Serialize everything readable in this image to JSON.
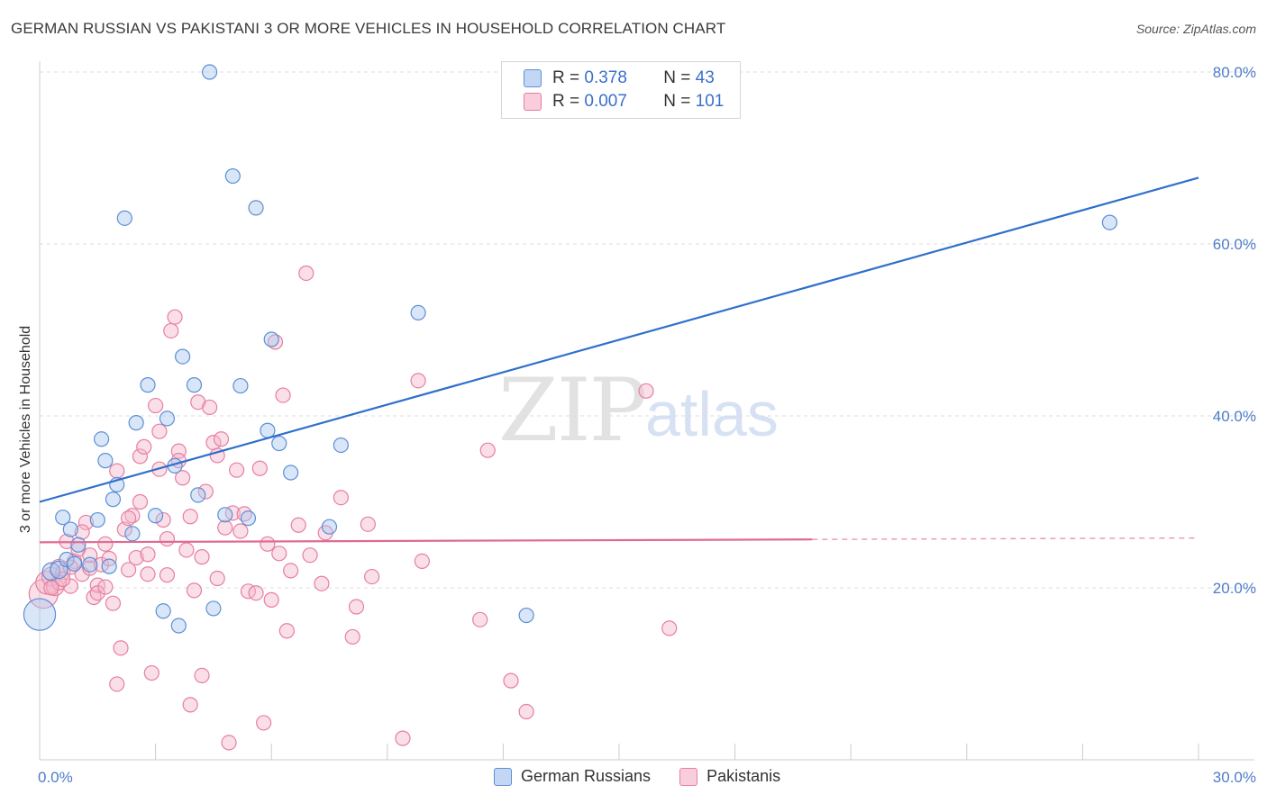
{
  "title": "GERMAN RUSSIAN VS PAKISTANI 3 OR MORE VEHICLES IN HOUSEHOLD CORRELATION CHART",
  "source": "Source: ZipAtlas.com",
  "watermark": {
    "zip": "ZIP",
    "atlas": "atlas"
  },
  "legend": {
    "rows": [
      {
        "r_label": "R =",
        "r_value": "0.378",
        "n_label": "N =",
        "n_value": "43"
      },
      {
        "r_label": "R =",
        "r_value": "0.007",
        "n_label": "N =",
        "n_value": "101"
      }
    ]
  },
  "bottom_legend": {
    "series1": "German Russians",
    "series2": "Pakistanis"
  },
  "colors": {
    "blue_fill": "#aac7f0",
    "blue_stroke": "#5c8fd6",
    "blue_line": "#2f6fcc",
    "pink_fill": "#f5b8cc",
    "pink_stroke": "#e67fa0",
    "pink_line": "#e06a92",
    "grid": "#dcdcdc",
    "axis_text": "#4d7cc9"
  },
  "chart_data": {
    "type": "scatter",
    "title": "GERMAN RUSSIAN VS PAKISTANI 3 OR MORE VEHICLES IN HOUSEHOLD CORRELATION CHART",
    "xlabel": "",
    "ylabel": "3 or more Vehicles in Household",
    "xlim": [
      0,
      30
    ],
    "ylim": [
      0,
      80
    ],
    "x_tick_labels": [
      "0.0%",
      "30.0%"
    ],
    "y_tick_labels": [
      "20.0%",
      "40.0%",
      "60.0%",
      "80.0%"
    ],
    "y_ticks": [
      20,
      40,
      60,
      80
    ],
    "legend_position": "top-center",
    "series": [
      {
        "name": "German Russians",
        "r": 0.378,
        "n": 43,
        "trend": {
          "x0": 0,
          "y0": 30.0,
          "x1": 30,
          "y1": 67.7,
          "dashed_from": null
        },
        "points": [
          [
            0.0,
            16.9,
            2.2
          ],
          [
            0.3,
            21.9,
            1.2
          ],
          [
            0.5,
            22.1,
            1.2
          ],
          [
            0.6,
            28.2,
            1
          ],
          [
            0.7,
            23.3,
            1
          ],
          [
            0.8,
            26.8,
            1
          ],
          [
            1.0,
            25.0,
            1
          ],
          [
            1.3,
            22.7,
            1
          ],
          [
            1.5,
            27.9,
            1
          ],
          [
            1.7,
            34.8,
            1
          ],
          [
            1.8,
            22.5,
            1
          ],
          [
            1.9,
            30.3,
            1
          ],
          [
            2.0,
            32.0,
            1
          ],
          [
            2.2,
            63.0,
            1
          ],
          [
            2.5,
            39.2,
            1
          ],
          [
            2.8,
            43.6,
            1
          ],
          [
            3.0,
            28.4,
            1
          ],
          [
            3.2,
            17.3,
            1
          ],
          [
            3.3,
            39.7,
            1
          ],
          [
            3.5,
            34.2,
            1
          ],
          [
            3.6,
            15.6,
            1
          ],
          [
            3.7,
            46.9,
            1
          ],
          [
            4.0,
            43.6,
            1
          ],
          [
            4.1,
            30.8,
            1
          ],
          [
            4.4,
            80.0,
            1
          ],
          [
            4.5,
            17.6,
            1
          ],
          [
            4.8,
            28.5,
            1
          ],
          [
            5.0,
            67.9,
            1
          ],
          [
            5.2,
            43.5,
            1
          ],
          [
            5.4,
            28.1,
            1
          ],
          [
            5.6,
            64.2,
            1
          ],
          [
            5.9,
            38.3,
            1
          ],
          [
            6.0,
            48.9,
            1
          ],
          [
            6.2,
            36.8,
            1
          ],
          [
            6.5,
            33.4,
            1
          ],
          [
            7.5,
            27.1,
            1
          ],
          [
            7.8,
            36.6,
            1
          ],
          [
            9.8,
            52.0,
            1
          ],
          [
            12.6,
            16.8,
            1
          ],
          [
            27.7,
            62.5,
            1
          ],
          [
            2.4,
            26.3,
            1
          ],
          [
            1.6,
            37.3,
            1
          ],
          [
            0.9,
            22.8,
            1
          ]
        ]
      },
      {
        "name": "Pakistanis",
        "r": 0.007,
        "n": 101,
        "trend": {
          "x0": 0,
          "y0": 25.3,
          "x1": 30,
          "y1": 25.8,
          "dashed_from": 20.0
        },
        "points": [
          [
            0.1,
            19.3,
            2.0
          ],
          [
            0.2,
            20.6,
            1.6
          ],
          [
            0.3,
            21.3,
            1.3
          ],
          [
            0.4,
            20.1,
            1.2
          ],
          [
            0.5,
            22.3,
            1.2
          ],
          [
            0.6,
            21.8,
            1
          ],
          [
            0.7,
            25.4,
            1
          ],
          [
            0.8,
            20.2,
            1
          ],
          [
            0.9,
            23.1,
            1
          ],
          [
            1.0,
            24.5,
            1
          ],
          [
            1.1,
            21.6,
            1
          ],
          [
            1.2,
            27.6,
            1
          ],
          [
            1.3,
            22.3,
            1
          ],
          [
            1.4,
            18.9,
            1
          ],
          [
            1.5,
            20.3,
            1
          ],
          [
            1.6,
            22.7,
            1
          ],
          [
            1.7,
            25.1,
            1
          ],
          [
            1.8,
            23.4,
            1
          ],
          [
            1.9,
            18.2,
            1
          ],
          [
            2.0,
            8.8,
            1
          ],
          [
            2.0,
            33.6,
            1
          ],
          [
            2.1,
            13.0,
            1
          ],
          [
            2.2,
            26.8,
            1
          ],
          [
            2.3,
            22.1,
            1
          ],
          [
            2.4,
            28.4,
            1
          ],
          [
            2.5,
            23.5,
            1
          ],
          [
            2.6,
            35.3,
            1
          ],
          [
            2.7,
            36.4,
            1
          ],
          [
            2.8,
            21.6,
            1
          ],
          [
            2.9,
            10.1,
            1
          ],
          [
            3.0,
            41.2,
            1
          ],
          [
            3.1,
            33.8,
            1
          ],
          [
            3.2,
            27.9,
            1
          ],
          [
            3.3,
            25.7,
            1
          ],
          [
            3.4,
            49.9,
            1
          ],
          [
            3.5,
            51.5,
            1
          ],
          [
            3.6,
            35.9,
            1
          ],
          [
            3.7,
            32.8,
            1
          ],
          [
            3.8,
            24.4,
            1
          ],
          [
            3.9,
            6.4,
            1
          ],
          [
            4.0,
            19.7,
            1
          ],
          [
            4.1,
            41.6,
            1
          ],
          [
            4.2,
            9.8,
            1
          ],
          [
            4.3,
            31.2,
            1
          ],
          [
            4.4,
            41.0,
            1
          ],
          [
            4.5,
            36.9,
            1
          ],
          [
            4.6,
            35.4,
            1
          ],
          [
            4.7,
            37.3,
            1
          ],
          [
            4.9,
            2.0,
            1
          ],
          [
            5.0,
            28.7,
            1
          ],
          [
            5.1,
            33.7,
            1
          ],
          [
            5.2,
            26.6,
            1
          ],
          [
            5.4,
            19.6,
            1
          ],
          [
            5.6,
            19.4,
            1
          ],
          [
            5.7,
            33.9,
            1
          ],
          [
            5.8,
            4.3,
            1
          ],
          [
            6.0,
            18.6,
            1
          ],
          [
            6.1,
            48.6,
            1
          ],
          [
            6.2,
            24.0,
            1
          ],
          [
            6.3,
            42.4,
            1
          ],
          [
            6.4,
            15.0,
            1
          ],
          [
            6.5,
            22.0,
            1
          ],
          [
            6.9,
            56.6,
            1
          ],
          [
            7.3,
            20.5,
            1
          ],
          [
            7.4,
            26.4,
            1
          ],
          [
            7.8,
            30.5,
            1
          ],
          [
            8.1,
            14.3,
            1
          ],
          [
            8.2,
            17.8,
            1
          ],
          [
            8.5,
            27.4,
            1
          ],
          [
            8.6,
            21.3,
            1
          ],
          [
            9.4,
            2.5,
            1
          ],
          [
            9.8,
            44.1,
            1
          ],
          [
            9.9,
            23.1,
            1
          ],
          [
            11.4,
            16.3,
            1
          ],
          [
            11.6,
            36.0,
            1
          ],
          [
            12.2,
            9.2,
            1
          ],
          [
            12.6,
            5.6,
            1
          ],
          [
            15.7,
            42.9,
            1
          ],
          [
            16.3,
            15.3,
            1
          ],
          [
            0.5,
            20.6,
            1
          ],
          [
            0.8,
            22.4,
            1
          ],
          [
            1.1,
            26.5,
            1
          ],
          [
            1.3,
            23.8,
            1
          ],
          [
            1.5,
            19.4,
            1
          ],
          [
            1.7,
            20.1,
            1
          ],
          [
            2.3,
            28.1,
            1
          ],
          [
            2.6,
            30.0,
            1
          ],
          [
            2.8,
            23.9,
            1
          ],
          [
            3.1,
            38.2,
            1
          ],
          [
            3.3,
            21.5,
            1
          ],
          [
            3.6,
            34.8,
            1
          ],
          [
            3.9,
            28.3,
            1
          ],
          [
            4.2,
            23.6,
            1
          ],
          [
            4.6,
            21.1,
            1
          ],
          [
            4.8,
            27.0,
            1
          ],
          [
            5.3,
            28.6,
            1
          ],
          [
            5.9,
            25.1,
            1
          ],
          [
            6.7,
            27.3,
            1
          ],
          [
            7.0,
            23.8,
            1
          ],
          [
            0.3,
            20.0,
            1
          ],
          [
            0.6,
            21.0,
            1
          ]
        ]
      }
    ]
  }
}
